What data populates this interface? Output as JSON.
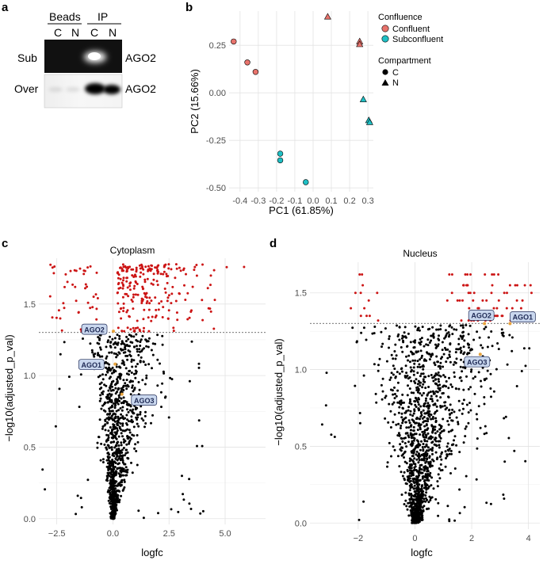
{
  "panels": {
    "a": {
      "letter": "a",
      "header_beads": "Beads",
      "header_ip": "IP",
      "lanes": [
        "C",
        "N",
        "C",
        "N"
      ],
      "rows": [
        {
          "label": "Sub",
          "band_label": "AGO2",
          "band_intensity": [
            0.0,
            0.0,
            0.95,
            0.0
          ]
        },
        {
          "label": "Over",
          "band_label": "AGO2",
          "band_intensity": [
            0.05,
            0.05,
            0.95,
            0.9
          ]
        }
      ]
    },
    "b": {
      "letter": "b"
    },
    "c": {
      "letter": "c"
    },
    "d": {
      "letter": "d"
    }
  },
  "chart_data": [
    {
      "id": "pca",
      "type": "scatter",
      "title": "",
      "xlabel": "PC1 (61.85%)",
      "ylabel": "PC2 (15.66%)",
      "xlim": [
        -0.46,
        0.33
      ],
      "ylim": [
        -0.52,
        0.43
      ],
      "xticks": [
        -0.4,
        -0.3,
        -0.2,
        -0.1,
        0.0,
        0.1,
        0.2,
        0.3
      ],
      "xtick_labels": [
        "-0.4",
        "-0.3",
        "-0.2",
        "-0.1",
        "0.0",
        "0.1",
        "0.2",
        "0.3"
      ],
      "yticks": [
        -0.5,
        -0.25,
        0.0,
        0.25
      ],
      "ytick_labels": [
        "-0.50",
        "-0.25",
        "0.00",
        "0.25"
      ],
      "legend": {
        "placement": "right",
        "confluence_title": "Confluence",
        "confluence_items": [
          {
            "label": "Confluent",
            "color": "#e8736c"
          },
          {
            "label": "Subconfluent",
            "color": "#1fbfc4"
          }
        ],
        "compartment_title": "Compartment",
        "compartment_items": [
          {
            "label": "C",
            "shape": "circle"
          },
          {
            "label": "N",
            "shape": "triangle"
          }
        ]
      },
      "points": [
        {
          "x": -0.435,
          "y": 0.27,
          "group": "Confluent",
          "shape": "circle"
        },
        {
          "x": -0.36,
          "y": 0.16,
          "group": "Confluent",
          "shape": "circle"
        },
        {
          "x": -0.315,
          "y": 0.11,
          "group": "Confluent",
          "shape": "circle"
        },
        {
          "x": 0.08,
          "y": 0.4,
          "group": "Confluent",
          "shape": "triangle"
        },
        {
          "x": 0.255,
          "y": 0.27,
          "group": "Confluent",
          "shape": "triangle"
        },
        {
          "x": 0.255,
          "y": 0.255,
          "group": "Confluent",
          "shape": "triangle"
        },
        {
          "x": -0.18,
          "y": -0.32,
          "group": "Subconfluent",
          "shape": "circle"
        },
        {
          "x": -0.18,
          "y": -0.355,
          "group": "Subconfluent",
          "shape": "circle"
        },
        {
          "x": -0.04,
          "y": -0.47,
          "group": "Subconfluent",
          "shape": "circle"
        },
        {
          "x": 0.275,
          "y": -0.035,
          "group": "Subconfluent",
          "shape": "triangle"
        },
        {
          "x": 0.305,
          "y": -0.145,
          "group": "Subconfluent",
          "shape": "triangle"
        },
        {
          "x": 0.31,
          "y": -0.155,
          "group": "Subconfluent",
          "shape": "triangle"
        }
      ]
    },
    {
      "id": "volcano-cytoplasm",
      "type": "scatter",
      "title": "Cytoplasm",
      "xlabel": "logfc",
      "ylabel": "−log10(adjusted_p_val)",
      "xlim": [
        -3.3,
        6.8
      ],
      "ylim": [
        -0.04,
        1.82
      ],
      "xticks": [
        -2.5,
        0.0,
        2.5,
        5.0
      ],
      "xtick_labels": [
        "−2.5",
        "0.0",
        "2.5",
        "5.0"
      ],
      "yticks": [
        0.0,
        0.5,
        1.0,
        1.5
      ],
      "ytick_labels": [
        "0.0",
        "0.5",
        "1.0",
        "1.5"
      ],
      "threshold_y": 1.301,
      "significant_color": "#cc1414",
      "nonsignificant_color": "#000000",
      "n_points": 1300,
      "highlight_genes": [
        {
          "name": "AGO2",
          "x": 0.02,
          "y": 1.31
        },
        {
          "name": "AGO1",
          "x": 0.1,
          "y": 1.08
        },
        {
          "name": "AGO3",
          "x": 0.4,
          "y": 0.87
        }
      ]
    },
    {
      "id": "volcano-nucleus",
      "type": "scatter",
      "title": "Nucleus",
      "xlabel": "logfc",
      "ylabel": "−log10(adjusted_p_val)",
      "xlim": [
        -3.7,
        4.4
      ],
      "ylim": [
        -0.04,
        1.7
      ],
      "xticks": [
        -2,
        0,
        2,
        4
      ],
      "xtick_labels": [
        "−2",
        "0",
        "2",
        "4"
      ],
      "yticks": [
        0.0,
        0.5,
        1.0,
        1.5
      ],
      "ytick_labels": [
        "0.0",
        "0.5",
        "1.0",
        "1.5"
      ],
      "threshold_y": 1.301,
      "significant_color": "#cc1414",
      "nonsignificant_color": "#000000",
      "n_points": 1500,
      "highlight_genes": [
        {
          "name": "AGO2",
          "x": 2.45,
          "y": 1.3
        },
        {
          "name": "AGO1",
          "x": 3.35,
          "y": 1.3
        },
        {
          "name": "AGO3",
          "x": 2.3,
          "y": 1.1
        }
      ]
    }
  ]
}
